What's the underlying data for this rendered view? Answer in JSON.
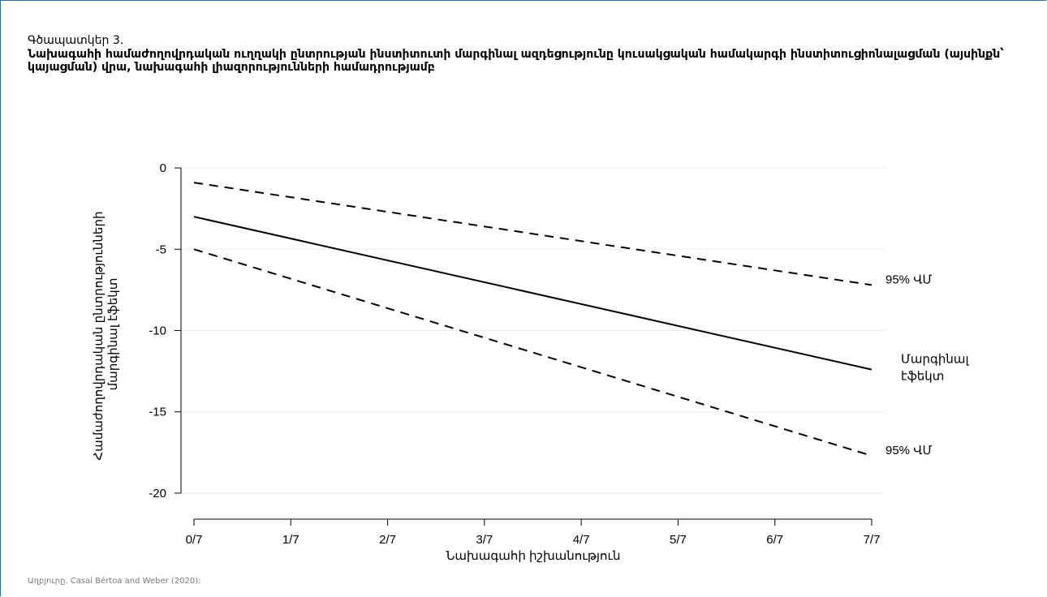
{
  "figure": {
    "label": "Գծապատկեր 3.",
    "title": "Նախագահի համաժողովրդական ուղղակի ընտրության ինստիտուտի մարգինալ ազդեցությունը կուսակցական համակարգի ինստիտուցիոնալացման (այսինքն՝ կայացման) վրա, նախագահի լիազորությունների համադրությամբ",
    "source": "Աղբյուրը. Casal Bértoa and Weber (2020):"
  },
  "chart_data": {
    "type": "line",
    "xlabel": "Նախագահի իշխանություն",
    "ylabel_lines": [
      "Համաժողովրդական ընտրությունների",
      "մարգինալ էֆեկտ"
    ],
    "x_ticks": [
      "0/7",
      "1/7",
      "2/7",
      "3/7",
      "4/7",
      "5/7",
      "6/7",
      "7/7"
    ],
    "y_ticks": [
      0,
      -5,
      -10,
      -15,
      -20
    ],
    "xlim": [
      0,
      1
    ],
    "ylim": [
      -20.8,
      1.2
    ],
    "grid": "horizontal",
    "series": [
      {
        "name": "95% ՎՄ",
        "style": "dashed",
        "x": [
          0,
          1
        ],
        "y": [
          -0.9,
          -7.2
        ]
      },
      {
        "name": "Մարգինալ էֆեկտ",
        "name_lines": [
          "Մարգինալ",
          "էֆեկտ"
        ],
        "style": "solid",
        "x": [
          0,
          1
        ],
        "y": [
          -3.0,
          -12.4
        ]
      },
      {
        "name": "95% ՎՄ",
        "style": "dashed",
        "x": [
          0,
          1
        ],
        "y": [
          -5.0,
          -17.7
        ]
      }
    ],
    "colors": {
      "line": "#000000",
      "grid": "#e6edf2",
      "axis": "#000000",
      "frame": "#2f6fa6"
    }
  }
}
